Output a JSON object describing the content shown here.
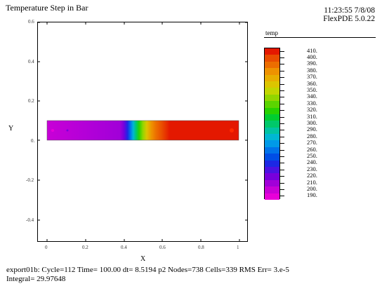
{
  "title": "Temperature Step in Bar",
  "header": {
    "time": "11:23:55 7/8/08",
    "product": "FlexPDE 5.0.22"
  },
  "plot": {
    "xlabel": "X",
    "ylabel": "Y",
    "yticks": [
      "0.6",
      "0.4",
      "0.2",
      "0.",
      "-0.2",
      "-0.4"
    ],
    "xticks": [
      "0",
      "0.2",
      "0.4",
      "0.6",
      "0.8",
      "1"
    ]
  },
  "legend": {
    "title": "temp",
    "labels": [
      "410.",
      "400.",
      "390.",
      "380.",
      "370.",
      "360.",
      "350.",
      "340.",
      "330.",
      "320.",
      "310.",
      "300.",
      "290.",
      "280.",
      "270.",
      "260.",
      "250.",
      "240.",
      "230.",
      "220.",
      "210.",
      "200.",
      "190."
    ],
    "colors": [
      "#e41800",
      "#e94c00",
      "#ec6d00",
      "#ee9200",
      "#e8ae00",
      "#dcc500",
      "#c2d600",
      "#92d600",
      "#5bd400",
      "#27d100",
      "#00cd30",
      "#00c86a",
      "#00c3a2",
      "#00b7d3",
      "#009ae8",
      "#0073ea",
      "#004ee6",
      "#1c28e4",
      "#4b12e2",
      "#7800dc",
      "#a100d8",
      "#c800d7",
      "#e800d9"
    ]
  },
  "footer": {
    "line1": "export01b:  Cycle=112  Time= 100.00  dt= 8.5194  p2  Nodes=738 Cells=339 RMS Err= 3.e-5",
    "line2": "Integral=   29.97648"
  }
}
